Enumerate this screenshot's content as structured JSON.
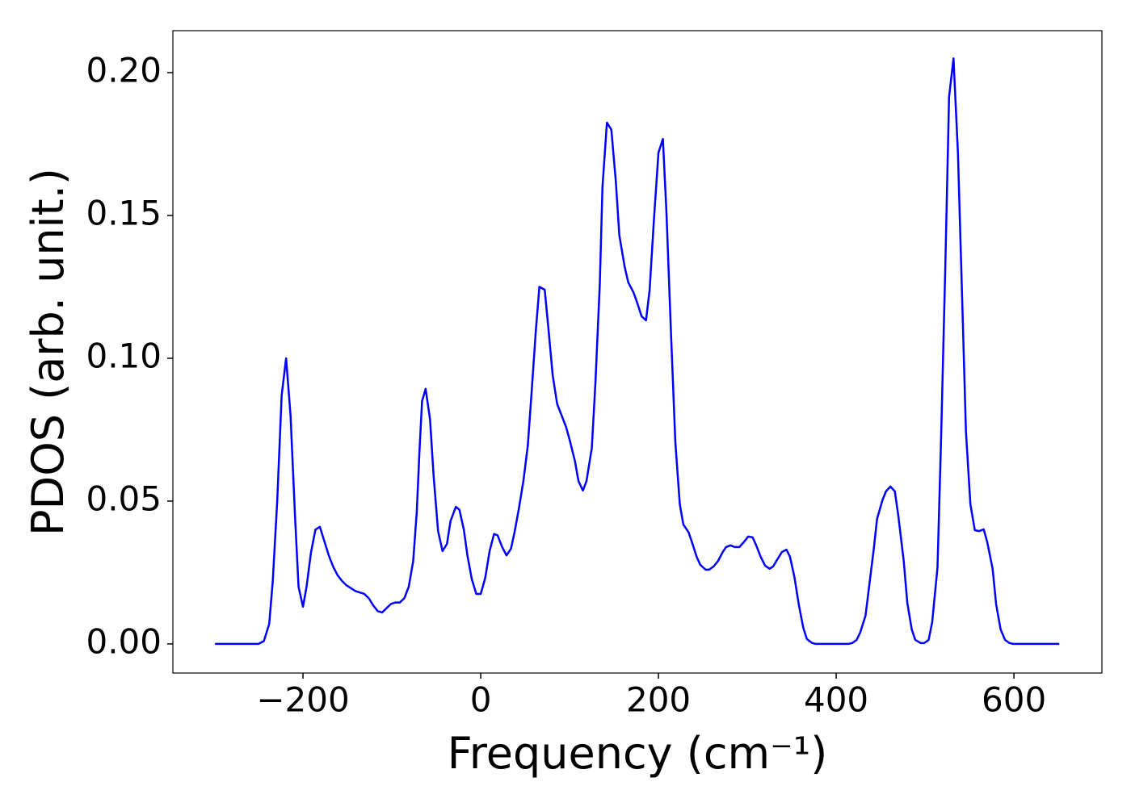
{
  "chart_data": {
    "type": "line",
    "xlabel": "Frequency (cm⁻¹)",
    "ylabel": "PDOS (arb. unit.)",
    "xlim": [
      -346.4,
      699
    ],
    "ylim": [
      -0.0102,
      0.2147
    ],
    "xticks": [
      {
        "value": -200,
        "label": "−200"
      },
      0,
      200,
      400,
      600
    ],
    "yticks": [
      {
        "value": 0,
        "label": "0.00"
      },
      {
        "value": 0.05,
        "label": "0.05"
      },
      {
        "value": 0.1,
        "label": "0.10"
      },
      {
        "value": 0.15,
        "label": "0.15"
      },
      {
        "value": 0.2,
        "label": "0.20"
      }
    ],
    "grid": false,
    "x": [
      -299,
      -250,
      -244,
      -238,
      -234,
      -229,
      -224,
      -219,
      -214,
      -209,
      -205,
      -200,
      -196,
      -191,
      -186,
      -181,
      -176,
      -171,
      -166,
      -161,
      -156,
      -151,
      -146,
      -141,
      -136,
      -131,
      -126,
      -121,
      -116,
      -111,
      -106,
      -101,
      -96,
      -91,
      -86,
      -81,
      -76,
      -72,
      -69,
      -66,
      -62,
      -57,
      -53,
      -48,
      -43,
      -38,
      -34,
      -28,
      -24,
      -19,
      -15,
      -10,
      -5,
      0,
      5,
      10,
      15,
      19,
      24,
      29,
      34,
      38,
      43,
      48,
      53,
      57,
      62,
      66,
      72,
      76,
      81,
      86,
      91,
      96,
      100,
      106,
      110,
      115,
      119,
      125,
      129,
      134,
      137,
      142,
      147,
      152,
      156,
      162,
      166,
      172,
      176,
      181,
      186,
      190,
      195,
      200,
      205,
      209,
      214,
      219,
      224,
      228,
      234,
      238,
      243,
      247,
      253,
      257,
      262,
      267,
      272,
      276,
      281,
      286,
      291,
      296,
      301,
      306,
      310,
      315,
      320,
      325,
      329,
      334,
      339,
      344,
      348,
      353,
      358,
      363,
      367,
      373,
      377,
      414,
      418,
      423,
      427,
      433,
      437,
      442,
      446,
      452,
      456,
      461,
      466,
      470,
      476,
      480,
      485,
      489,
      495,
      499,
      504,
      508,
      514,
      518,
      523,
      527,
      532,
      537,
      542,
      546,
      551,
      556,
      561,
      566,
      570,
      576,
      580,
      585,
      590,
      595,
      599,
      651
    ],
    "series": [
      {
        "color": "#0000ff",
        "values": [
          0,
          0,
          0.001,
          0.007,
          0.022,
          0.05,
          0.087,
          0.1,
          0.08,
          0.045,
          0.02,
          0.013,
          0.02,
          0.032,
          0.04,
          0.041,
          0.036,
          0.031,
          0.027,
          0.024,
          0.022,
          0.0205,
          0.0195,
          0.0185,
          0.018,
          0.0175,
          0.016,
          0.0135,
          0.0115,
          0.011,
          0.0125,
          0.014,
          0.0145,
          0.0145,
          0.016,
          0.02,
          0.029,
          0.046,
          0.067,
          0.085,
          0.0893,
          0.0785,
          0.0588,
          0.0395,
          0.0325,
          0.035,
          0.043,
          0.048,
          0.047,
          0.04,
          0.031,
          0.0226,
          0.0175,
          0.0175,
          0.023,
          0.0325,
          0.0385,
          0.038,
          0.034,
          0.031,
          0.0333,
          0.039,
          0.0475,
          0.057,
          0.0695,
          0.087,
          0.1096,
          0.125,
          0.124,
          0.111,
          0.094,
          0.084,
          0.08,
          0.076,
          0.0715,
          0.064,
          0.057,
          0.0537,
          0.057,
          0.0686,
          0.091,
          0.126,
          0.16,
          0.1825,
          0.18,
          0.162,
          0.143,
          0.132,
          0.1266,
          0.123,
          0.1195,
          0.1147,
          0.1133,
          0.1237,
          0.149,
          0.172,
          0.1768,
          0.151,
          0.1096,
          0.0706,
          0.0489,
          0.0418,
          0.039,
          0.0353,
          0.0305,
          0.0277,
          0.026,
          0.026,
          0.0271,
          0.029,
          0.032,
          0.0339,
          0.0345,
          0.0339,
          0.0339,
          0.0356,
          0.0376,
          0.0373,
          0.0345,
          0.0305,
          0.0274,
          0.0263,
          0.0271,
          0.0297,
          0.0322,
          0.033,
          0.0305,
          0.0234,
          0.0136,
          0.0056,
          0.0017,
          0.0003,
          0,
          0,
          0.0003,
          0.0014,
          0.004,
          0.0099,
          0.02,
          0.0325,
          0.0438,
          0.0503,
          0.0534,
          0.0551,
          0.0534,
          0.0446,
          0.029,
          0.0144,
          0.0051,
          0.0014,
          0.0003,
          0.0003,
          0.0014,
          0.0076,
          0.0268,
          0.0715,
          0.135,
          0.1915,
          0.205,
          0.1718,
          0.118,
          0.0743,
          0.0489,
          0.0398,
          0.0395,
          0.0401,
          0.0356,
          0.0263,
          0.0138,
          0.0051,
          0.0014,
          0.0003,
          0,
          0
        ]
      }
    ]
  }
}
